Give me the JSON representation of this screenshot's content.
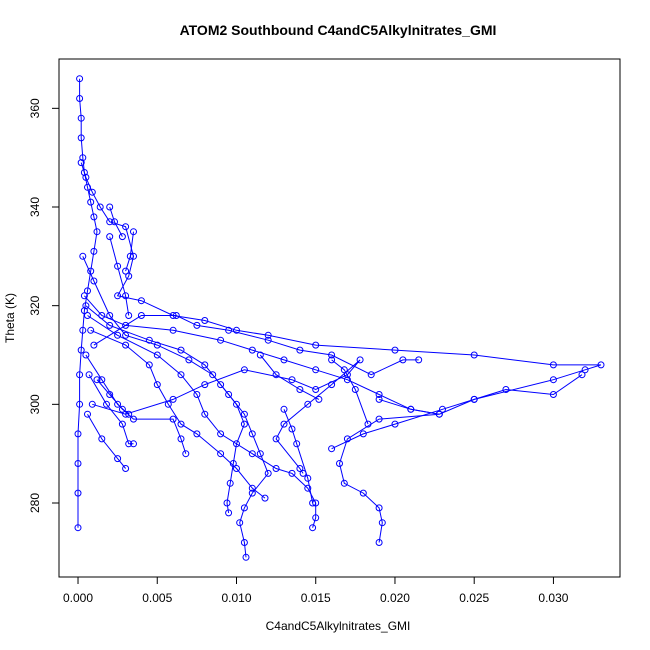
{
  "chart_data": {
    "type": "scatter",
    "title": "ATOM2 Southbound C4andC5Alkylnitrates_GMI",
    "xlabel": "C4andC5Alkylnitrates_GMI",
    "ylabel": "Theta (K)",
    "xlim": [
      -0.0012,
      0.0342
    ],
    "ylim": [
      265,
      370
    ],
    "x_ticks": [
      {
        "value": 0.0,
        "label": "0.000"
      },
      {
        "value": 0.005,
        "label": "0.005"
      },
      {
        "value": 0.01,
        "label": "0.010"
      },
      {
        "value": 0.015,
        "label": "0.015"
      },
      {
        "value": 0.02,
        "label": "0.020"
      },
      {
        "value": 0.025,
        "label": "0.025"
      },
      {
        "value": 0.03,
        "label": "0.030"
      }
    ],
    "y_ticks": [
      {
        "value": 280,
        "label": "280"
      },
      {
        "value": 300,
        "label": "300"
      },
      {
        "value": 320,
        "label": "320"
      },
      {
        "value": 340,
        "label": "340"
      },
      {
        "value": 360,
        "label": "360"
      }
    ],
    "grid": false,
    "series_color": "#0000ff",
    "marker": "open-circle",
    "series": [
      {
        "values": [
          {
            "x": 0.0001,
            "y": 366
          },
          {
            "x": 0.0001,
            "y": 362
          },
          {
            "x": 0.0002,
            "y": 358
          },
          {
            "x": 0.0002,
            "y": 354
          },
          {
            "x": 0.0003,
            "y": 350
          },
          {
            "x": 0.0004,
            "y": 347
          },
          {
            "x": 0.0006,
            "y": 344
          },
          {
            "x": 0.0008,
            "y": 341
          },
          {
            "x": 0.001,
            "y": 338
          },
          {
            "x": 0.0012,
            "y": 335
          },
          {
            "x": 0.001,
            "y": 331
          },
          {
            "x": 0.0008,
            "y": 327
          },
          {
            "x": 0.0006,
            "y": 323
          },
          {
            "x": 0.0004,
            "y": 319
          },
          {
            "x": 0.0003,
            "y": 315
          },
          {
            "x": 0.0002,
            "y": 311
          },
          {
            "x": 0.0001,
            "y": 306
          },
          {
            "x": 0.0001,
            "y": 300
          },
          {
            "x": 0.0,
            "y": 294
          },
          {
            "x": 0.0,
            "y": 288
          },
          {
            "x": 0.0,
            "y": 282
          },
          {
            "x": 0.0,
            "y": 275
          }
        ]
      },
      {
        "values": [
          {
            "x": 0.0002,
            "y": 349
          },
          {
            "x": 0.0005,
            "y": 346
          },
          {
            "x": 0.0009,
            "y": 343
          },
          {
            "x": 0.0014,
            "y": 340
          },
          {
            "x": 0.002,
            "y": 337
          },
          {
            "x": 0.003,
            "y": 336
          },
          {
            "x": 0.0035,
            "y": 330
          },
          {
            "x": 0.0032,
            "y": 326
          },
          {
            "x": 0.0025,
            "y": 322
          },
          {
            "x": 0.004,
            "y": 321
          },
          {
            "x": 0.006,
            "y": 318
          },
          {
            "x": 0.008,
            "y": 317
          },
          {
            "x": 0.01,
            "y": 315
          },
          {
            "x": 0.012,
            "y": 314
          },
          {
            "x": 0.015,
            "y": 312
          },
          {
            "x": 0.02,
            "y": 311
          },
          {
            "x": 0.025,
            "y": 310
          },
          {
            "x": 0.03,
            "y": 308
          },
          {
            "x": 0.033,
            "y": 308
          },
          {
            "x": 0.032,
            "y": 307
          },
          {
            "x": 0.03,
            "y": 305
          },
          {
            "x": 0.025,
            "y": 301
          },
          {
            "x": 0.023,
            "y": 299
          },
          {
            "x": 0.02,
            "y": 296
          },
          {
            "x": 0.018,
            "y": 294
          },
          {
            "x": 0.016,
            "y": 291
          }
        ]
      },
      {
        "values": [
          {
            "x": 0.0003,
            "y": 330
          },
          {
            "x": 0.001,
            "y": 325
          },
          {
            "x": 0.002,
            "y": 318
          },
          {
            "x": 0.003,
            "y": 314
          },
          {
            "x": 0.005,
            "y": 312
          },
          {
            "x": 0.007,
            "y": 309
          },
          {
            "x": 0.0085,
            "y": 306
          },
          {
            "x": 0.0095,
            "y": 302
          },
          {
            "x": 0.0105,
            "y": 298
          },
          {
            "x": 0.011,
            "y": 294
          },
          {
            "x": 0.0115,
            "y": 290
          },
          {
            "x": 0.012,
            "y": 286
          },
          {
            "x": 0.011,
            "y": 282
          },
          {
            "x": 0.0105,
            "y": 279
          },
          {
            "x": 0.0102,
            "y": 276
          },
          {
            "x": 0.0105,
            "y": 272
          },
          {
            "x": 0.0106,
            "y": 269
          }
        ]
      },
      {
        "values": [
          {
            "x": 0.0004,
            "y": 322
          },
          {
            "x": 0.0015,
            "y": 318
          },
          {
            "x": 0.003,
            "y": 316
          },
          {
            "x": 0.006,
            "y": 315
          },
          {
            "x": 0.009,
            "y": 313
          },
          {
            "x": 0.011,
            "y": 311
          },
          {
            "x": 0.013,
            "y": 309
          },
          {
            "x": 0.015,
            "y": 307
          },
          {
            "x": 0.017,
            "y": 305
          },
          {
            "x": 0.019,
            "y": 302
          },
          {
            "x": 0.021,
            "y": 299
          },
          {
            "x": 0.0228,
            "y": 298
          },
          {
            "x": 0.019,
            "y": 297
          },
          {
            "x": 0.017,
            "y": 293
          },
          {
            "x": 0.0165,
            "y": 288
          },
          {
            "x": 0.0168,
            "y": 284
          },
          {
            "x": 0.018,
            "y": 282
          },
          {
            "x": 0.019,
            "y": 279
          },
          {
            "x": 0.0192,
            "y": 276
          },
          {
            "x": 0.019,
            "y": 272
          }
        ]
      },
      {
        "values": [
          {
            "x": 0.0005,
            "y": 320
          },
          {
            "x": 0.002,
            "y": 316
          },
          {
            "x": 0.0045,
            "y": 313
          },
          {
            "x": 0.0065,
            "y": 311
          },
          {
            "x": 0.008,
            "y": 308
          },
          {
            "x": 0.009,
            "y": 304
          },
          {
            "x": 0.01,
            "y": 300
          },
          {
            "x": 0.0105,
            "y": 296
          },
          {
            "x": 0.01,
            "y": 292
          },
          {
            "x": 0.0098,
            "y": 288
          },
          {
            "x": 0.0096,
            "y": 284
          },
          {
            "x": 0.0094,
            "y": 280
          },
          {
            "x": 0.0095,
            "y": 278
          }
        ]
      },
      {
        "values": [
          {
            "x": 0.0006,
            "y": 318
          },
          {
            "x": 0.0025,
            "y": 314
          },
          {
            "x": 0.005,
            "y": 310
          },
          {
            "x": 0.0065,
            "y": 306
          },
          {
            "x": 0.0075,
            "y": 302
          },
          {
            "x": 0.008,
            "y": 298
          },
          {
            "x": 0.009,
            "y": 294
          },
          {
            "x": 0.011,
            "y": 290
          },
          {
            "x": 0.0125,
            "y": 287
          },
          {
            "x": 0.0135,
            "y": 286
          },
          {
            "x": 0.0145,
            "y": 283
          },
          {
            "x": 0.015,
            "y": 280
          },
          {
            "x": 0.015,
            "y": 277
          },
          {
            "x": 0.0148,
            "y": 275
          }
        ]
      },
      {
        "values": [
          {
            "x": 0.0005,
            "y": 310
          },
          {
            "x": 0.0015,
            "y": 305
          },
          {
            "x": 0.0025,
            "y": 300
          },
          {
            "x": 0.0035,
            "y": 297
          },
          {
            "x": 0.006,
            "y": 297
          },
          {
            "x": 0.0065,
            "y": 293
          },
          {
            "x": 0.0068,
            "y": 290
          }
        ]
      },
      {
        "values": [
          {
            "x": 0.0007,
            "y": 306
          },
          {
            "x": 0.0018,
            "y": 300
          },
          {
            "x": 0.0028,
            "y": 296
          },
          {
            "x": 0.0032,
            "y": 292
          },
          {
            "x": 0.0035,
            "y": 292
          }
        ]
      },
      {
        "values": [
          {
            "x": 0.0006,
            "y": 298
          },
          {
            "x": 0.0015,
            "y": 293
          },
          {
            "x": 0.0025,
            "y": 289
          },
          {
            "x": 0.003,
            "y": 287
          }
        ]
      },
      {
        "values": [
          {
            "x": 0.0009,
            "y": 300
          },
          {
            "x": 0.003,
            "y": 298
          },
          {
            "x": 0.006,
            "y": 301
          },
          {
            "x": 0.008,
            "y": 304
          },
          {
            "x": 0.0105,
            "y": 307
          },
          {
            "x": 0.0135,
            "y": 305
          },
          {
            "x": 0.015,
            "y": 303
          },
          {
            "x": 0.017,
            "y": 306
          },
          {
            "x": 0.0178,
            "y": 309
          },
          {
            "x": 0.016,
            "y": 304
          },
          {
            "x": 0.0145,
            "y": 300
          },
          {
            "x": 0.013,
            "y": 296
          },
          {
            "x": 0.0125,
            "y": 293
          },
          {
            "x": 0.014,
            "y": 287
          },
          {
            "x": 0.0142,
            "y": 286
          }
        ]
      },
      {
        "values": [
          {
            "x": 0.001,
            "y": 312
          },
          {
            "x": 0.004,
            "y": 318
          },
          {
            "x": 0.0062,
            "y": 318
          },
          {
            "x": 0.0075,
            "y": 316
          },
          {
            "x": 0.0095,
            "y": 315
          },
          {
            "x": 0.012,
            "y": 313
          },
          {
            "x": 0.014,
            "y": 311
          },
          {
            "x": 0.016,
            "y": 310
          },
          {
            "x": 0.0185,
            "y": 306
          },
          {
            "x": 0.0205,
            "y": 309
          },
          {
            "x": 0.0215,
            "y": 309
          }
        ]
      },
      {
        "values": [
          {
            "x": 0.0008,
            "y": 315
          },
          {
            "x": 0.003,
            "y": 312
          },
          {
            "x": 0.0045,
            "y": 308
          },
          {
            "x": 0.005,
            "y": 304
          },
          {
            "x": 0.0057,
            "y": 300
          },
          {
            "x": 0.0065,
            "y": 296
          },
          {
            "x": 0.0075,
            "y": 294
          },
          {
            "x": 0.009,
            "y": 290
          },
          {
            "x": 0.01,
            "y": 287
          },
          {
            "x": 0.011,
            "y": 283
          },
          {
            "x": 0.0118,
            "y": 281
          }
        ]
      },
      {
        "values": [
          {
            "x": 0.002,
            "y": 334
          },
          {
            "x": 0.0025,
            "y": 328
          },
          {
            "x": 0.003,
            "y": 322
          },
          {
            "x": 0.0032,
            "y": 318
          }
        ]
      },
      {
        "values": [
          {
            "x": 0.0035,
            "y": 335
          },
          {
            "x": 0.0033,
            "y": 330
          },
          {
            "x": 0.003,
            "y": 327
          }
        ]
      },
      {
        "values": [
          {
            "x": 0.002,
            "y": 340
          },
          {
            "x": 0.0023,
            "y": 337
          },
          {
            "x": 0.0028,
            "y": 334
          }
        ]
      },
      {
        "values": [
          {
            "x": 0.0012,
            "y": 305
          },
          {
            "x": 0.002,
            "y": 302
          },
          {
            "x": 0.0028,
            "y": 299
          },
          {
            "x": 0.0032,
            "y": 298
          }
        ]
      },
      {
        "values": [
          {
            "x": 0.019,
            "y": 301
          },
          {
            "x": 0.021,
            "y": 299
          },
          {
            "x": 0.0228,
            "y": 298
          },
          {
            "x": 0.025,
            "y": 301
          },
          {
            "x": 0.027,
            "y": 303
          },
          {
            "x": 0.03,
            "y": 302
          },
          {
            "x": 0.0318,
            "y": 306
          }
        ]
      },
      {
        "values": [
          {
            "x": 0.016,
            "y": 309
          },
          {
            "x": 0.0168,
            "y": 307
          },
          {
            "x": 0.0175,
            "y": 303
          },
          {
            "x": 0.0183,
            "y": 296
          }
        ]
      },
      {
        "values": [
          {
            "x": 0.013,
            "y": 299
          },
          {
            "x": 0.0135,
            "y": 295
          },
          {
            "x": 0.0138,
            "y": 292
          },
          {
            "x": 0.0145,
            "y": 285
          },
          {
            "x": 0.0148,
            "y": 280
          }
        ]
      },
      {
        "values": [
          {
            "x": 0.0115,
            "y": 310
          },
          {
            "x": 0.0125,
            "y": 306
          },
          {
            "x": 0.014,
            "y": 303
          },
          {
            "x": 0.0152,
            "y": 301
          }
        ]
      }
    ]
  }
}
